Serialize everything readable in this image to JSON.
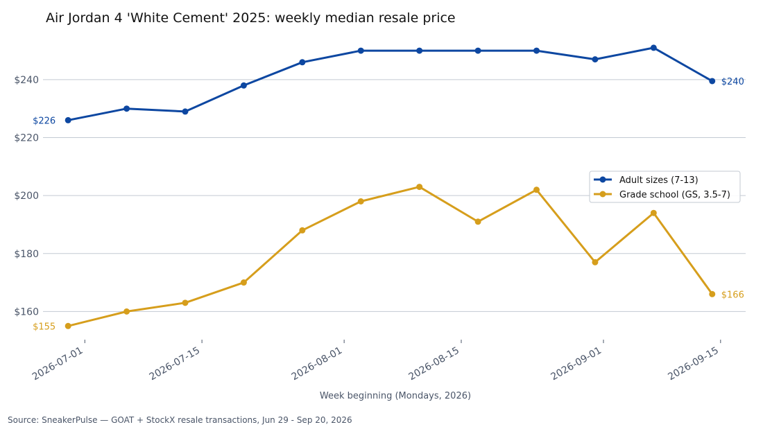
{
  "chart_data": {
    "type": "line",
    "title": "Air Jordan 4 'White Cement' 2025: weekly median resale price",
    "xlabel": "Week beginning (Mondays, 2026)",
    "ylabel": "",
    "source": "Source: SneakerPulse — GOAT + StockX resale transactions, Jun 29 - Sep 20, 2026",
    "x": [
      "2026-06-29",
      "2026-07-06",
      "2026-07-13",
      "2026-07-20",
      "2026-07-27",
      "2026-08-03",
      "2026-08-10",
      "2026-08-17",
      "2026-08-24",
      "2026-08-31",
      "2026-09-07",
      "2026-09-14"
    ],
    "x_ticks": [
      "2026-07-01",
      "2026-07-15",
      "2026-08-01",
      "2026-08-15",
      "2026-09-01",
      "2026-09-15"
    ],
    "x_range": [
      "2026-06-26",
      "2026-09-18"
    ],
    "y_ticks": [
      160,
      180,
      200,
      220,
      240
    ],
    "y_tick_labels": [
      "$160",
      "$180",
      "$200",
      "$220",
      "$240"
    ],
    "ylim": [
      151,
      256
    ],
    "grid": "horizontal",
    "legend_position": "right",
    "series": [
      {
        "name": "Adult sizes (7-13)",
        "color": "#0d47a1",
        "values": [
          226,
          230,
          229,
          238,
          246,
          250,
          250,
          250,
          250,
          247,
          251,
          239.5
        ],
        "start_label": "$226",
        "end_label": "$240"
      },
      {
        "name": "Grade school (GS, 3.5-7)",
        "color": "#d69e1c",
        "values": [
          155,
          160,
          163,
          170,
          188,
          198,
          203,
          191,
          202,
          177,
          194,
          166
        ],
        "start_label": "$155",
        "end_label": "$166"
      }
    ]
  }
}
